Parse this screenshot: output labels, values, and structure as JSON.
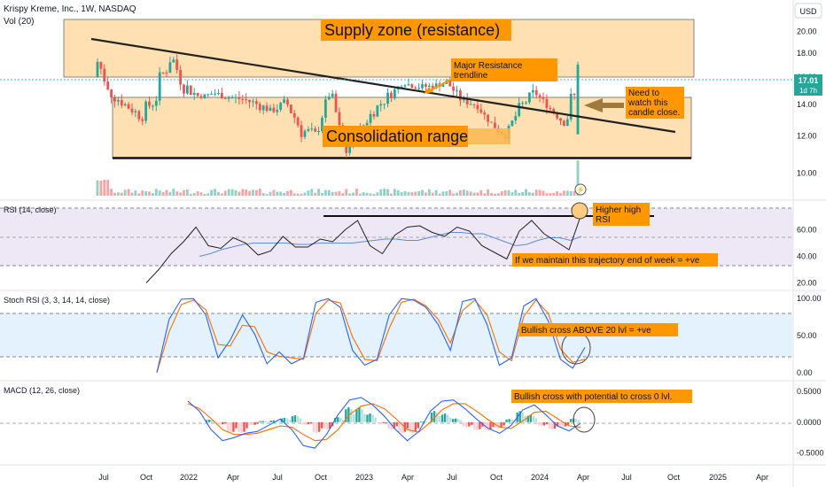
{
  "header": {
    "symbol": "Krispy Kreme, Inc., 1W, NASDAQ",
    "volume_label": "Vol (20)",
    "currency": "USD",
    "last_price": "17.01",
    "countdown": "1d 7h"
  },
  "colors": {
    "up": "#26a69a",
    "down": "#ef5350",
    "annotation_orange": "#ff9800",
    "zone_fill": "#ffe0b2",
    "rsi_line": "#222222",
    "rsi_ma": "#5b8fd6",
    "rsi_band": "#ede7f6",
    "stoch_k": "#2962ff",
    "stoch_d": "#ff6d00",
    "stoch_band": "#e3f2fd",
    "macd_line": "#2962ff",
    "signal_line": "#ff6d00"
  },
  "x_axis": {
    "ticks": [
      "Jul",
      "Oct",
      "2022",
      "Apr",
      "Jul",
      "Oct",
      "2023",
      "Apr",
      "Jul",
      "Oct",
      "2024",
      "Apr",
      "Jul",
      "Oct",
      "2025",
      "Apr"
    ],
    "start": "2021-07",
    "end": "2025-05"
  },
  "annotations": {
    "supply_zone": "Supply zone (resistance)",
    "major_resistance": "Major Resistance trendline",
    "need_to_watch": "Need to watch this candle close.",
    "consolidation": "Consolidation range",
    "higher_high": "Higher high RSI",
    "trajectory": "If we maintain this trajectory end of week = +ve",
    "stoch_cross": "Bullish cross ABOVE 20 lvl =    +ve",
    "macd_cross": "Bullish cross with potential to cross 0 lvl."
  },
  "panes": {
    "rsi_label": "RSI (14, close)",
    "stoch_label": "Stoch RSI (3, 3, 14, 14, close)",
    "macd_label": "MACD (12, 26, close)"
  },
  "chart_data": [
    {
      "type": "candlestick",
      "title": "Krispy Kreme, Inc., 1W, NASDAQ",
      "y_axis_ticks": [
        "20.00",
        "18.00",
        "16.00",
        "14.00",
        "12.00",
        "10.00"
      ],
      "ylim": [
        9.0,
        21.2
      ],
      "scale": "log",
      "supply_zone": [
        17.4,
        21.0
      ],
      "consolidation_range": [
        11.7,
        15.8
      ],
      "resistance_trendline": {
        "from": {
          "date": "2021-07",
          "price": 19.8
        },
        "to": {
          "date": "2024-10",
          "price": 13.8
        }
      },
      "price_path": [
        [
          "2021-07",
          16.0,
          18.5
        ],
        [
          "2021-08",
          14.2,
          15.2
        ],
        [
          "2021-09",
          13.6,
          14.2
        ],
        [
          "2021-10",
          12.8,
          13.6
        ],
        [
          "2021-11",
          13.6,
          15.6
        ],
        [
          "2021-12",
          16.6,
          19.0
        ],
        [
          "2022-01",
          14.6,
          16.0
        ],
        [
          "2022-02",
          14.4,
          14.6
        ],
        [
          "2022-03",
          14.6,
          15.0
        ],
        [
          "2022-04",
          14.2,
          14.8
        ],
        [
          "2022-05",
          14.1,
          14.6
        ],
        [
          "2022-06",
          13.6,
          14.4
        ],
        [
          "2022-07",
          13.4,
          13.7
        ],
        [
          "2022-08",
          13.6,
          14.6
        ],
        [
          "2022-09",
          11.8,
          12.9
        ],
        [
          "2022-10",
          11.6,
          12.4
        ],
        [
          "2022-11",
          14.6,
          15.4
        ],
        [
          "2022-12",
          10.8,
          11.1
        ],
        [
          "2023-01",
          12.0,
          12.6
        ],
        [
          "2023-02",
          13.2,
          14.0
        ],
        [
          "2023-03",
          14.2,
          15.0
        ],
        [
          "2023-04",
          15.4,
          15.7
        ],
        [
          "2023-05",
          15.0,
          15.5
        ],
        [
          "2023-06",
          15.1,
          15.5
        ],
        [
          "2023-07",
          15.3,
          15.9
        ],
        [
          "2023-08",
          14.0,
          14.6
        ],
        [
          "2023-09",
          13.8,
          14.1
        ],
        [
          "2023-10",
          12.6,
          13.0
        ],
        [
          "2023-11",
          11.8,
          12.1
        ],
        [
          "2023-12",
          13.2,
          14.2
        ],
        [
          "2024-01",
          14.6,
          15.2
        ],
        [
          "2024-02",
          13.6,
          14.0
        ],
        [
          "2024-03",
          12.6,
          13.0
        ],
        [
          "2024-03-end",
          12.0,
          17.2
        ]
      ],
      "last_close": 17.01,
      "volume_note": "volume bars shown; peaks at first weeks and final week"
    },
    {
      "type": "line",
      "title": "RSI (14, close)",
      "y_axis_ticks": [
        "60.00",
        "40.00",
        "20.00"
      ],
      "ylim": [
        17,
        81
      ],
      "bands": [
        30,
        70
      ],
      "resistance_level": 67,
      "series": [
        {
          "values": [
            20,
            30,
            42,
            51,
            62,
            48,
            46,
            54,
            50,
            41,
            44,
            55,
            47,
            47,
            53,
            51,
            60,
            67,
            48,
            42,
            56,
            62,
            63,
            58,
            55,
            62,
            59,
            48,
            43,
            38,
            59,
            67,
            57,
            51,
            45,
            72
          ]
        },
        {
          "values": [
            40,
            42,
            45,
            47,
            49,
            50,
            50,
            50,
            50,
            49,
            49,
            50,
            50,
            50,
            50,
            51,
            52,
            53,
            53,
            52,
            52,
            54,
            56,
            58,
            58,
            57,
            57,
            54,
            51,
            48,
            49,
            52,
            54,
            54,
            52,
            55
          ]
        }
      ]
    },
    {
      "type": "line",
      "title": "Stoch RSI (3, 3, 14, 14, close)",
      "y_axis_ticks": [
        "100.00",
        "50.00",
        "0.00"
      ],
      "ylim": [
        -5,
        105
      ],
      "bands": [
        20,
        80
      ],
      "series": [
        {
          "values": [
            0,
            72,
            99,
            100,
            78,
            20,
            44,
            78,
            52,
            12,
            28,
            12,
            20,
            95,
            100,
            88,
            30,
            10,
            18,
            78,
            100,
            98,
            88,
            65,
            30,
            96,
            100,
            65,
            10,
            20,
            90,
            100,
            70,
            18,
            6,
            34
          ]
        },
        {
          "values": [
            0,
            55,
            92,
            98,
            85,
            38,
            36,
            64,
            62,
            28,
            22,
            20,
            18,
            80,
            98,
            94,
            48,
            18,
            16,
            60,
            95,
            99,
            90,
            72,
            40,
            84,
            98,
            78,
            28,
            16,
            76,
            98,
            80,
            32,
            14,
            18
          ]
        }
      ]
    },
    {
      "type": "line",
      "title": "MACD (12, 26, close)",
      "y_axis_ticks": [
        "0.5000",
        "0.0000",
        "-0.5000"
      ],
      "ylim": [
        -0.62,
        0.6
      ],
      "series": [
        {
          "values": [
            0.34,
            0.18,
            -0.12,
            -0.3,
            -0.25,
            -0.18,
            -0.15,
            -0.05,
            0.05,
            -0.12,
            -0.38,
            -0.42,
            -0.2,
            0.12,
            0.36,
            0.4,
            0.28,
            0.1,
            -0.12,
            -0.3,
            -0.15,
            0.18,
            0.34,
            0.36,
            0.22,
            0.05,
            -0.1,
            -0.18,
            -0.05,
            0.2,
            0.28,
            0.12,
            -0.06,
            -0.14,
            -0.02
          ]
        },
        {
          "values": [
            0.3,
            0.22,
            0.06,
            -0.12,
            -0.2,
            -0.2,
            -0.18,
            -0.12,
            -0.06,
            -0.08,
            -0.2,
            -0.3,
            -0.28,
            -0.12,
            0.12,
            0.26,
            0.3,
            0.22,
            0.06,
            -0.12,
            -0.16,
            0.0,
            0.2,
            0.3,
            0.3,
            0.18,
            0.04,
            -0.08,
            -0.1,
            0.02,
            0.16,
            0.18,
            0.06,
            -0.06,
            -0.08
          ]
        }
      ],
      "histogram": [
        0.04,
        -0.04,
        -0.18,
        -0.18,
        -0.05,
        0.02,
        0.03,
        0.07,
        0.11,
        -0.04,
        -0.18,
        -0.12,
        0.08,
        0.24,
        0.24,
        0.14,
        -0.02,
        -0.12,
        -0.18,
        -0.18,
        0.01,
        0.18,
        0.14,
        0.06,
        -0.08,
        -0.13,
        -0.14,
        -0.1,
        0.05,
        0.18,
        0.12,
        -0.06,
        -0.12,
        -0.08,
        0.06
      ]
    }
  ]
}
